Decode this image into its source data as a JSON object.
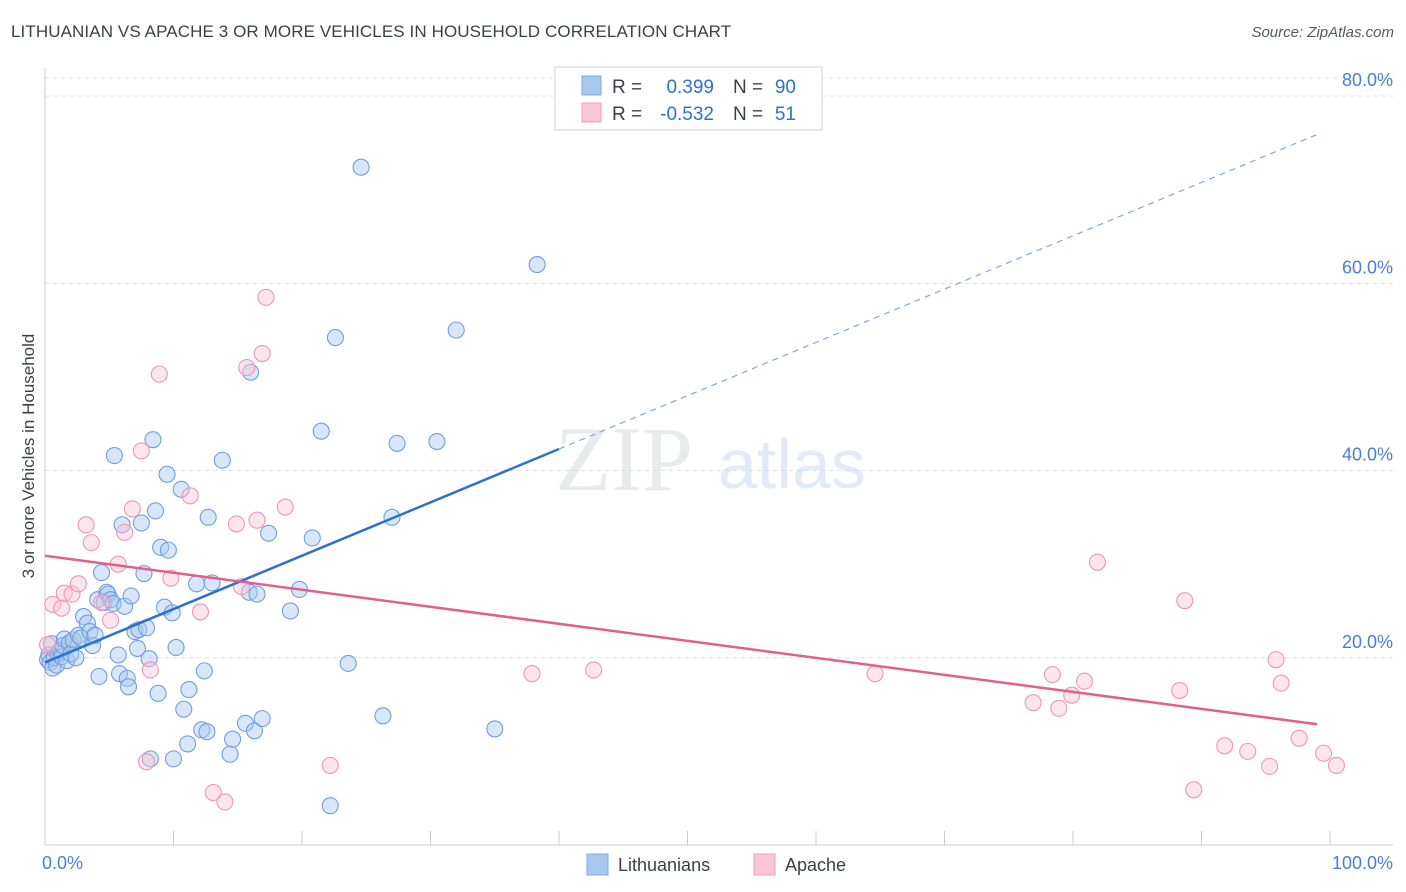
{
  "header": {
    "title": "LITHUANIAN VS APACHE 3 OR MORE VEHICLES IN HOUSEHOLD CORRELATION CHART",
    "source": "Source: ZipAtlas.com"
  },
  "watermark": {
    "zip": "ZIP",
    "atlas": "atlas"
  },
  "legend": {
    "rows": [
      {
        "r_label": "R =",
        "r_value": "0.399",
        "n_label": "N =",
        "n_value": "90",
        "color": "#a9c8f0"
      },
      {
        "r_label": "R =",
        "r_value": "-0.532",
        "n_label": "N =",
        "n_value": "51",
        "color": "#f5b8cb"
      }
    ]
  },
  "chart_data": {
    "type": "scatter",
    "title": "LITHUANIAN VS APACHE 3 OR MORE VEHICLES IN HOUSEHOLD CORRELATION CHART",
    "xlabel": "",
    "ylabel": "3 or more Vehicles in Household",
    "xlim": [
      0,
      100
    ],
    "ylim": [
      0,
      83
    ],
    "x_tick_labels": [
      "0.0%",
      "100.0%"
    ],
    "y_ticks": [
      20,
      40,
      60,
      80
    ],
    "y_tick_labels": [
      "20.0%",
      "40.0%",
      "60.0%",
      "80.0%"
    ],
    "grid": true,
    "legend_position": "bottom-center",
    "series": [
      {
        "name": "Lithuanians",
        "color": "#6f9fe0",
        "line_color": "#2f6fce",
        "trend": {
          "x": [
            0,
            40
          ],
          "y": [
            19.5,
            42.3
          ],
          "dashed_to_x": 99,
          "dashed_to_y": 75.9
        },
        "points": [
          [
            0.2,
            19.8
          ],
          [
            0.3,
            20.3
          ],
          [
            0.4,
            19.5
          ],
          [
            0.5,
            21.5
          ],
          [
            0.6,
            18.9
          ],
          [
            0.7,
            20.0
          ],
          [
            0.9,
            19.2
          ],
          [
            1.0,
            20.5
          ],
          [
            1.2,
            20.8
          ],
          [
            1.3,
            20.1
          ],
          [
            1.4,
            21.3
          ],
          [
            1.5,
            22.0
          ],
          [
            1.7,
            19.7
          ],
          [
            1.9,
            21.6
          ],
          [
            2.0,
            20.4
          ],
          [
            2.2,
            21.9
          ],
          [
            2.4,
            20.0
          ],
          [
            2.6,
            22.4
          ],
          [
            2.8,
            22.1
          ],
          [
            3.0,
            24.4
          ],
          [
            3.3,
            23.7
          ],
          [
            3.5,
            22.8
          ],
          [
            3.7,
            21.3
          ],
          [
            3.9,
            22.4
          ],
          [
            4.1,
            26.2
          ],
          [
            4.2,
            18.0
          ],
          [
            4.4,
            29.1
          ],
          [
            4.6,
            25.9
          ],
          [
            4.8,
            27.0
          ],
          [
            4.9,
            26.8
          ],
          [
            5.1,
            26.2
          ],
          [
            5.3,
            25.8
          ],
          [
            5.4,
            41.6
          ],
          [
            5.7,
            20.3
          ],
          [
            5.8,
            18.3
          ],
          [
            6.0,
            34.2
          ],
          [
            6.2,
            25.5
          ],
          [
            6.4,
            17.8
          ],
          [
            6.5,
            16.9
          ],
          [
            6.7,
            26.6
          ],
          [
            7.0,
            22.8
          ],
          [
            7.2,
            21.0
          ],
          [
            7.3,
            23.0
          ],
          [
            7.5,
            34.4
          ],
          [
            7.7,
            29.0
          ],
          [
            7.9,
            23.2
          ],
          [
            8.1,
            19.9
          ],
          [
            8.2,
            9.2
          ],
          [
            8.4,
            43.3
          ],
          [
            8.6,
            35.7
          ],
          [
            8.8,
            16.2
          ],
          [
            9.0,
            31.8
          ],
          [
            9.3,
            25.4
          ],
          [
            9.5,
            39.6
          ],
          [
            9.6,
            31.5
          ],
          [
            9.9,
            24.8
          ],
          [
            10.0,
            9.2
          ],
          [
            10.2,
            21.1
          ],
          [
            10.6,
            38.0
          ],
          [
            10.8,
            14.5
          ],
          [
            11.1,
            10.8
          ],
          [
            11.2,
            16.6
          ],
          [
            11.8,
            27.9
          ],
          [
            12.2,
            12.3
          ],
          [
            12.4,
            18.6
          ],
          [
            12.6,
            12.1
          ],
          [
            12.7,
            35.0
          ],
          [
            13.0,
            28.0
          ],
          [
            13.8,
            41.1
          ],
          [
            14.4,
            9.7
          ],
          [
            14.6,
            11.3
          ],
          [
            15.6,
            13.0
          ],
          [
            15.9,
            27.0
          ],
          [
            16.0,
            50.5
          ],
          [
            16.3,
            12.2
          ],
          [
            16.5,
            26.8
          ],
          [
            16.9,
            13.5
          ],
          [
            17.4,
            33.3
          ],
          [
            19.1,
            25.0
          ],
          [
            19.8,
            27.3
          ],
          [
            20.8,
            32.8
          ],
          [
            21.5,
            44.2
          ],
          [
            22.2,
            4.2
          ],
          [
            22.6,
            54.2
          ],
          [
            23.6,
            19.4
          ],
          [
            24.6,
            72.4
          ],
          [
            26.3,
            13.8
          ],
          [
            27.0,
            35.0
          ],
          [
            27.4,
            42.9
          ],
          [
            30.5,
            43.1
          ],
          [
            32.0,
            55.0
          ],
          [
            35.0,
            12.4
          ],
          [
            38.3,
            62.0
          ]
        ]
      },
      {
        "name": "Apache",
        "color": "#f08aab",
        "line_color": "#e0608f",
        "trend": {
          "x": [
            0,
            99
          ],
          "y": [
            30.9,
            12.9
          ]
        },
        "points": [
          [
            0.2,
            21.4
          ],
          [
            0.6,
            25.7
          ],
          [
            1.3,
            25.3
          ],
          [
            1.5,
            26.9
          ],
          [
            2.1,
            26.8
          ],
          [
            2.6,
            27.9
          ],
          [
            3.2,
            34.2
          ],
          [
            3.6,
            32.3
          ],
          [
            4.4,
            25.9
          ],
          [
            5.1,
            24.0
          ],
          [
            5.7,
            30.0
          ],
          [
            6.2,
            33.4
          ],
          [
            6.8,
            35.9
          ],
          [
            7.5,
            42.1
          ],
          [
            7.9,
            8.9
          ],
          [
            8.2,
            18.7
          ],
          [
            8.9,
            50.3
          ],
          [
            9.8,
            28.5
          ],
          [
            11.3,
            37.3
          ],
          [
            12.1,
            24.9
          ],
          [
            13.1,
            5.6
          ],
          [
            14.0,
            4.6
          ],
          [
            14.9,
            34.3
          ],
          [
            15.3,
            27.6
          ],
          [
            15.7,
            51.0
          ],
          [
            16.5,
            34.7
          ],
          [
            16.9,
            52.5
          ],
          [
            17.2,
            58.5
          ],
          [
            18.7,
            36.1
          ],
          [
            22.2,
            8.5
          ],
          [
            37.9,
            18.3
          ],
          [
            42.7,
            18.7
          ],
          [
            64.6,
            18.3
          ],
          [
            76.9,
            15.2
          ],
          [
            78.4,
            18.2
          ],
          [
            78.9,
            14.6
          ],
          [
            79.9,
            16.0
          ],
          [
            80.9,
            17.5
          ],
          [
            81.9,
            30.2
          ],
          [
            88.3,
            16.5
          ],
          [
            88.7,
            26.1
          ],
          [
            89.4,
            5.9
          ],
          [
            91.8,
            10.6
          ],
          [
            93.6,
            10.0
          ],
          [
            95.3,
            8.4
          ],
          [
            95.8,
            19.8
          ],
          [
            96.2,
            17.3
          ],
          [
            97.6,
            11.4
          ],
          [
            99.5,
            9.8
          ],
          [
            100.5,
            8.5
          ]
        ]
      }
    ]
  }
}
